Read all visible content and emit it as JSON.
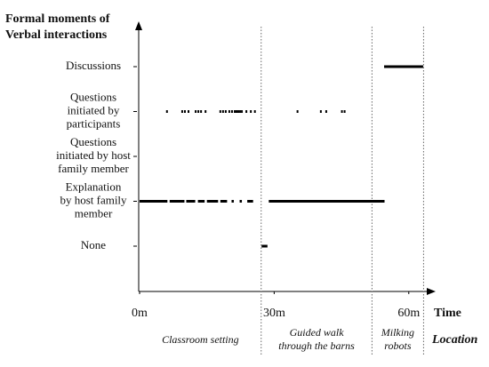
{
  "chart_data": {
    "type": "timeline",
    "y_title": [
      "Formal moments of",
      "Verbal interactions"
    ],
    "x_title": "Time",
    "location_title": "Location",
    "xlim": [
      0,
      65
    ],
    "xticks": [
      {
        "value": 0,
        "label": "0m"
      },
      {
        "value": 30,
        "label": "30m"
      },
      {
        "value": 60,
        "label": "60m"
      }
    ],
    "color": "#000000",
    "dividers": [
      27.1,
      51.8,
      63.3
    ],
    "regions": [
      [
        "Classroom setting"
      ],
      [
        "Guided walk",
        "through the barns"
      ],
      [
        "Milking",
        "robots"
      ]
    ],
    "rows": [
      {
        "name": [
          "Discussions"
        ],
        "segments": [
          [
            54.5,
            63.2
          ]
        ],
        "points": []
      },
      {
        "name": [
          "Questions",
          "initiated by",
          "participants"
        ],
        "segments": [],
        "points": [
          6.1,
          9.5,
          10.1,
          10.9,
          12.5,
          13.1,
          13.7,
          14.7,
          18.0,
          18.6,
          19.2,
          20.0,
          20.6,
          21.2,
          21.6,
          22.0,
          22.4,
          22.8,
          23.8,
          24.8,
          25.7,
          35.2,
          40.4,
          41.6,
          45.1,
          45.7
        ]
      },
      {
        "name": [
          "Questions",
          "initiated by host",
          "family member"
        ],
        "segments": [],
        "points": []
      },
      {
        "name": [
          "Explanation",
          "by host family",
          "member"
        ],
        "segments": [
          [
            0,
            6.2
          ],
          [
            6.7,
            10.0
          ],
          [
            10.4,
            12.4
          ],
          [
            13.0,
            14.5
          ],
          [
            15.0,
            17.5
          ],
          [
            18.0,
            19.5
          ],
          [
            20.5,
            21.0
          ],
          [
            22.3,
            22.8
          ],
          [
            24.0,
            25.3
          ],
          [
            28.8,
            54.6
          ]
        ],
        "points": []
      },
      {
        "name": [
          "None"
        ],
        "segments": [
          [
            27.2,
            28.5
          ]
        ],
        "points": []
      }
    ]
  }
}
